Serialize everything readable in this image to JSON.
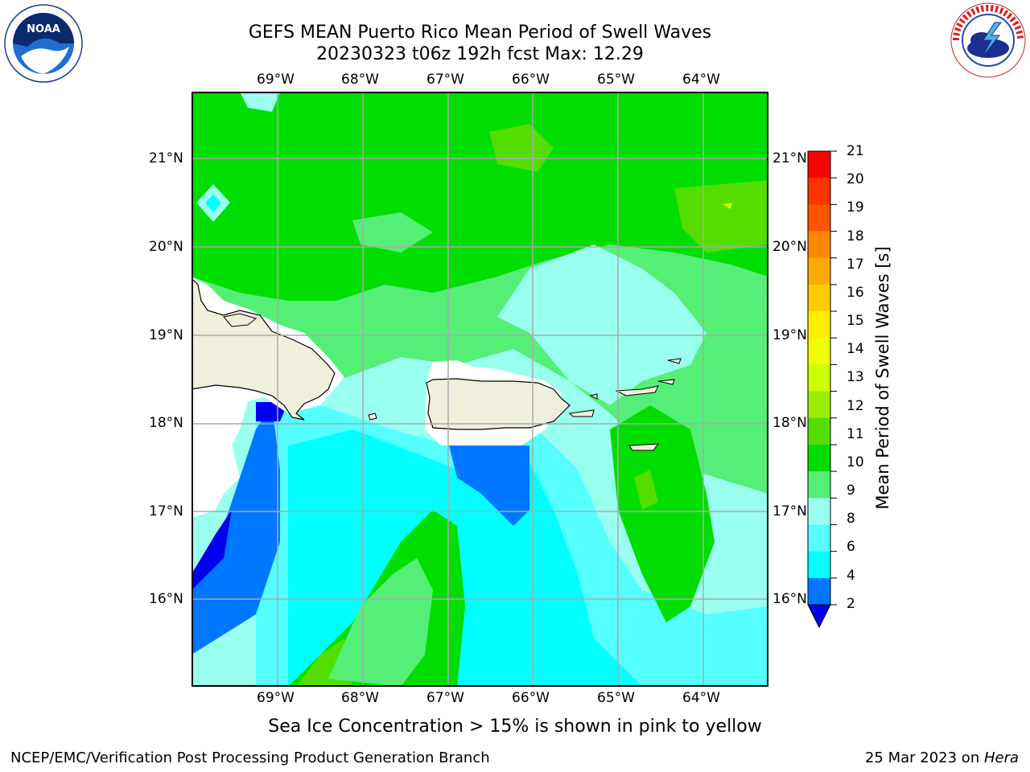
{
  "title": {
    "line1": "GEFS MEAN Puerto Rico Mean Period of Swell Waves",
    "line2": "20230323 t06z 192h fcst   Max: 12.29"
  },
  "logos": {
    "left": {
      "name": "noaa-logo",
      "text": "NOAA"
    },
    "right": {
      "name": "nws-logo",
      "text": "NATIONAL WEATHER SERVICE"
    }
  },
  "map": {
    "lon_labels": [
      "69°W",
      "68°W",
      "67°W",
      "66°W",
      "65°W",
      "64°W"
    ],
    "lat_labels": [
      "21°N",
      "20°N",
      "19°N",
      "18°N",
      "17°N",
      "16°N"
    ],
    "features": [
      "Hispaniola",
      "Puerto Rico",
      "Virgin Islands"
    ]
  },
  "colorbar": {
    "label": "Mean Period of Swell Waves [s]",
    "ticks": [
      "21",
      "20",
      "19",
      "18",
      "17",
      "16",
      "15",
      "14",
      "13",
      "12",
      "11",
      "10",
      "9",
      "8",
      "6",
      "4",
      "2"
    ],
    "colors": [
      "#ff0000",
      "#ff3300",
      "#ff5500",
      "#ff8800",
      "#ffaa00",
      "#ffcc00",
      "#ffee00",
      "#eeff00",
      "#ccff00",
      "#99ee00",
      "#55dd00",
      "#00dd00",
      "#55ee77",
      "#99ffee",
      "#55ffff",
      "#00ffff",
      "#0077ff",
      "#0000ee"
    ]
  },
  "caption": "Sea Ice Concentration > 15% is shown in pink to yellow",
  "footer": {
    "left": "NCEP/EMC/Verification Post Processing Product Generation Branch",
    "right_date": "25 Mar 2023 on ",
    "right_host": "Hera"
  }
}
